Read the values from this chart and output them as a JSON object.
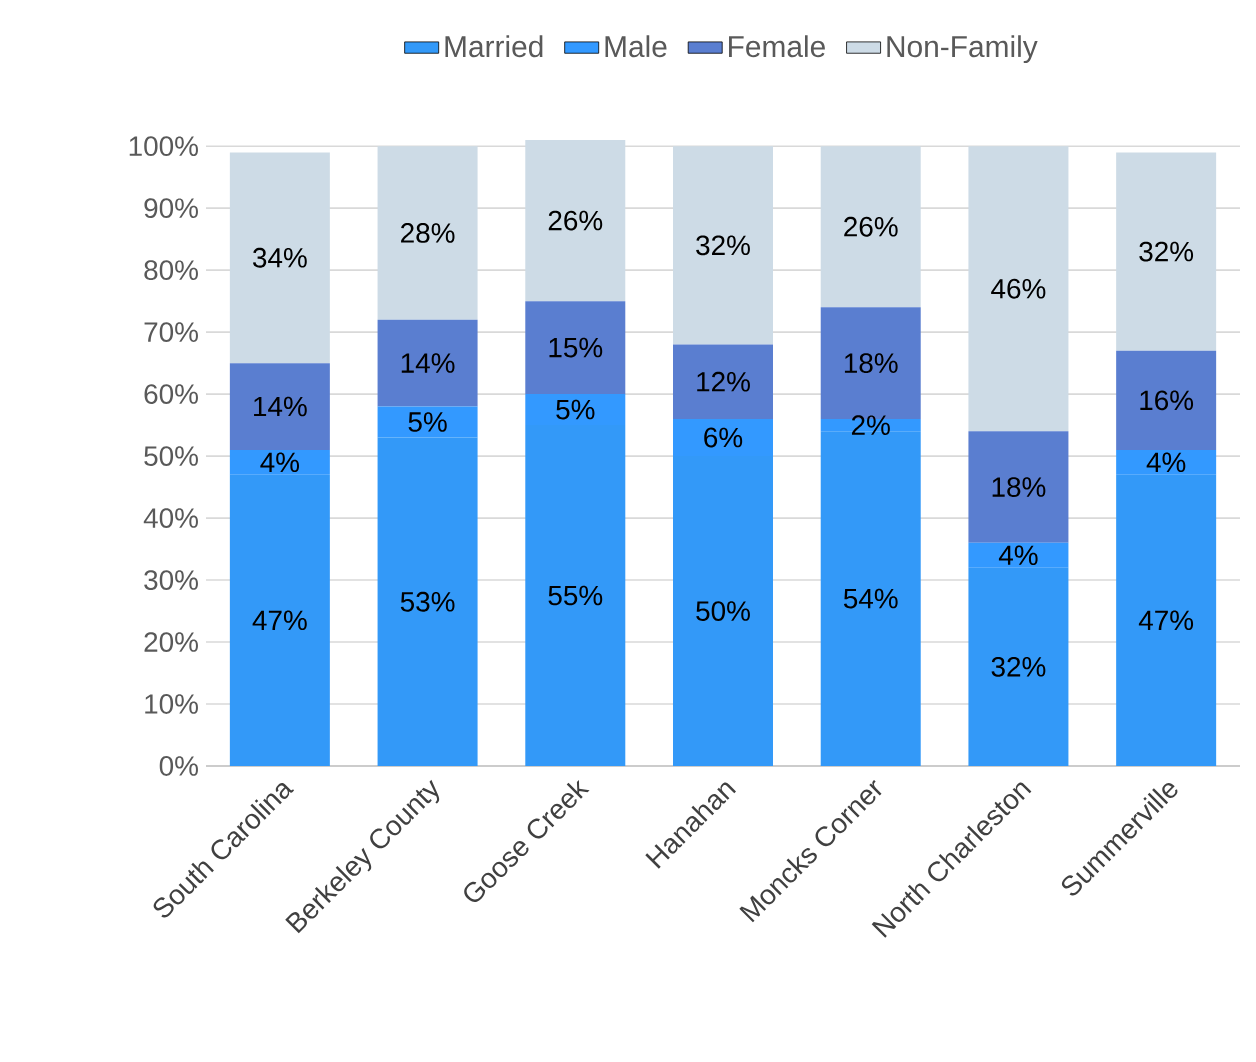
{
  "chart_data": {
    "type": "bar",
    "stacked": true,
    "categories": [
      "South Carolina",
      "Berkeley County",
      "Goose Creek",
      "Hanahan",
      "Moncks Corner",
      "North Charleston",
      "Summerville"
    ],
    "series": [
      {
        "name": "Married",
        "color": "#3399f8",
        "values": [
          47,
          53,
          55,
          50,
          54,
          32,
          47
        ],
        "value_labels": [
          "47%",
          "53%",
          "55%",
          "50%",
          "54%",
          "32%",
          "47%"
        ]
      },
      {
        "name": "Male",
        "color": "#3399ff",
        "values": [
          4,
          5,
          5,
          6,
          2,
          4,
          4
        ],
        "value_labels": [
          "4%",
          "5%",
          "5%",
          "6%",
          "2%",
          "4%",
          "4%"
        ]
      },
      {
        "name": "Female",
        "color": "#5a7ed0",
        "values": [
          14,
          14,
          15,
          12,
          18,
          18,
          16
        ],
        "value_labels": [
          "14%",
          "14%",
          "15%",
          "12%",
          "18%",
          "18%",
          "16%"
        ]
      },
      {
        "name": "Non-Family",
        "color": "#cddbe6",
        "values": [
          34,
          28,
          26,
          32,
          26,
          46,
          32
        ],
        "value_labels": [
          "34%",
          "28%",
          "26%",
          "32%",
          "26%",
          "46%",
          "32%"
        ]
      }
    ],
    "ylim": [
      0,
      101
    ],
    "yticks": [
      {
        "value": 0,
        "label": "0%"
      },
      {
        "value": 10,
        "label": "10%"
      },
      {
        "value": 20,
        "label": "20%"
      },
      {
        "value": 30,
        "label": "30%"
      },
      {
        "value": 40,
        "label": "40%"
      },
      {
        "value": 50,
        "label": "50%"
      },
      {
        "value": 60,
        "label": "60%"
      },
      {
        "value": 70,
        "label": "70%"
      },
      {
        "value": 80,
        "label": "80%"
      },
      {
        "value": 90,
        "label": "90%"
      },
      {
        "value": 100,
        "label": "100%"
      }
    ],
    "grid": "y",
    "legend": "top"
  }
}
